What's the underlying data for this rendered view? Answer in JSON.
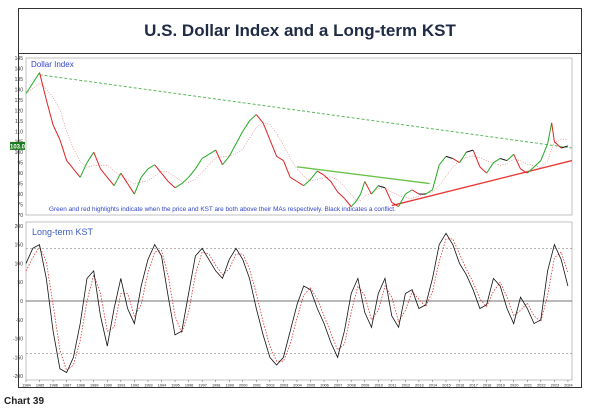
{
  "title": "U.S. Dollar Index and a Long-term KST",
  "caption": "Chart 39",
  "colors": {
    "up": "#22aa22",
    "down": "#dd2222",
    "conflict": "#111111",
    "kst": "#111111",
    "kst_ma": "#dd3333",
    "top_trendline": "#5cb85c",
    "bottom_trendline": "#e83a3a",
    "channel": "#6cc24a",
    "label_blue": "#3344cc",
    "badge": "#1b7a1b"
  },
  "chart_data": [
    {
      "type": "line",
      "series_label": "Dollar Index",
      "ylim": [
        70,
        145
      ],
      "yticks": [
        "145",
        "140",
        "135",
        "130",
        "125",
        "120",
        "115",
        "110",
        "105",
        "100",
        "95",
        "90",
        "85",
        "80",
        "75",
        "70"
      ],
      "ytick_values": [
        145,
        140,
        135,
        130,
        125,
        120,
        115,
        110,
        105,
        100,
        95,
        90,
        85,
        80,
        75,
        70
      ],
      "current_badge": "103.0",
      "current_value": 103,
      "annotation": "Green and red highlights indicate when the price and KST are both above their MAs respectively. Black indicates a conflict.",
      "series": [
        {
          "name": "Dollar Index",
          "x": [
            1984,
            1985,
            1985.5,
            1986,
            1986.5,
            1987,
            1987.5,
            1988,
            1988.5,
            1989,
            1989.5,
            1990,
            1990.5,
            1991,
            1991.5,
            1992,
            1992.5,
            1993,
            1993.5,
            1994,
            1994.5,
            1995,
            1995.5,
            1996,
            1996.5,
            1997,
            1997.5,
            1998,
            1998.5,
            1999,
            1999.5,
            2000,
            2000.5,
            2001,
            2001.5,
            2002,
            2002.5,
            2003,
            2003.5,
            2004,
            2004.5,
            2005,
            2005.5,
            2006,
            2006.5,
            2007,
            2007.5,
            2008,
            2008.3,
            2008.7,
            2009,
            2009.5,
            2010,
            2010.5,
            2011,
            2011.5,
            2012,
            2012.5,
            2013,
            2013.5,
            2014,
            2014.5,
            2015,
            2015.5,
            2016,
            2016.5,
            2017,
            2017.5,
            2018,
            2018.5,
            2019,
            2019.5,
            2020,
            2020.5,
            2021,
            2021.5,
            2022,
            2022.5,
            2022.8,
            2023,
            2023.5,
            2024
          ],
          "y": [
            128,
            138,
            125,
            113,
            106,
            96,
            92,
            88,
            95,
            100,
            92,
            88,
            84,
            90,
            85,
            80,
            88,
            92,
            94,
            90,
            86,
            83,
            85,
            88,
            92,
            97,
            99,
            101,
            94,
            98,
            104,
            110,
            115,
            118,
            114,
            106,
            98,
            96,
            88,
            86,
            84,
            87,
            91,
            89,
            86,
            81,
            78,
            74,
            76,
            80,
            86,
            80,
            84,
            83,
            76,
            74,
            80,
            82,
            80,
            80,
            82,
            94,
            98,
            97,
            95,
            100,
            101,
            93,
            90,
            95,
            97,
            96,
            99,
            92,
            90,
            93,
            96,
            104,
            114,
            105,
            102,
            103
          ]
        }
      ]
    },
    {
      "type": "line",
      "series_label": "Long-term KST",
      "ylim": [
        -210,
        210
      ],
      "yticks": [
        "200",
        "150",
        "100",
        "50",
        "0",
        "-50",
        "-100",
        "-150",
        "-200"
      ],
      "ytick_values": [
        200,
        150,
        100,
        50,
        0,
        -50,
        -100,
        -150,
        -200
      ],
      "reference_lines": [
        140,
        0,
        -140
      ],
      "xticks": [
        "1984",
        "1985",
        "1986",
        "1987",
        "1988",
        "1989",
        "1990",
        "1991",
        "1992",
        "1993",
        "1994",
        "1995",
        "1996",
        "1997",
        "1998",
        "1999",
        "2000",
        "2001",
        "2002",
        "2003",
        "2004",
        "2005",
        "2006",
        "2007",
        "2008",
        "2009",
        "2010",
        "2011",
        "2012",
        "2013",
        "2014",
        "2015",
        "2016",
        "2017",
        "2018",
        "2019",
        "2020",
        "2021",
        "2022",
        "2023",
        "2024"
      ],
      "series": [
        {
          "name": "KST",
          "x": [
            1984,
            1984.5,
            1985,
            1985.5,
            1986,
            1986.5,
            1987,
            1987.5,
            1988,
            1988.5,
            1989,
            1989.5,
            1990,
            1990.5,
            1991,
            1991.5,
            1992,
            1992.5,
            1993,
            1993.5,
            1994,
            1994.5,
            1995,
            1995.5,
            1996,
            1996.5,
            1997,
            1997.5,
            1998,
            1998.5,
            1999,
            1999.5,
            2000,
            2000.5,
            2001,
            2001.5,
            2002,
            2002.5,
            2003,
            2003.5,
            2004,
            2004.5,
            2005,
            2005.5,
            2006,
            2006.5,
            2007,
            2007.5,
            2008,
            2008.5,
            2009,
            2009.5,
            2010,
            2010.5,
            2011,
            2011.5,
            2012,
            2012.5,
            2013,
            2013.5,
            2014,
            2014.5,
            2015,
            2015.5,
            2016,
            2016.5,
            2017,
            2017.5,
            2018,
            2018.5,
            2019,
            2019.5,
            2020,
            2020.5,
            2021,
            2021.5,
            2022,
            2022.5,
            2023,
            2023.5,
            2024
          ],
          "y": [
            100,
            140,
            150,
            60,
            -80,
            -180,
            -190,
            -150,
            -60,
            60,
            80,
            -40,
            -120,
            -20,
            60,
            -20,
            -60,
            40,
            110,
            150,
            120,
            10,
            -90,
            -80,
            20,
            120,
            140,
            110,
            80,
            60,
            110,
            140,
            110,
            60,
            -20,
            -90,
            -150,
            -170,
            -150,
            -80,
            -10,
            40,
            30,
            -20,
            -60,
            -110,
            -150,
            -80,
            20,
            60,
            -30,
            -70,
            20,
            60,
            -40,
            -70,
            20,
            30,
            -20,
            -10,
            60,
            150,
            180,
            150,
            100,
            70,
            30,
            -20,
            -10,
            60,
            40,
            -20,
            -60,
            10,
            -20,
            -60,
            -50,
            80,
            150,
            110,
            40
          ]
        },
        {
          "name": "KST MA",
          "x": [
            1984,
            1984.5,
            1985,
            1985.5,
            1986,
            1986.5,
            1987,
            1987.5,
            1988,
            1988.5,
            1989,
            1989.5,
            1990,
            1990.5,
            1991,
            1991.5,
            1992,
            1992.5,
            1993,
            1993.5,
            1994,
            1994.5,
            1995,
            1995.5,
            1996,
            1996.5,
            1997,
            1997.5,
            1998,
            1998.5,
            1999,
            1999.5,
            2000,
            2000.5,
            2001,
            2001.5,
            2002,
            2002.5,
            2003,
            2003.5,
            2004,
            2004.5,
            2005,
            2005.5,
            2006,
            2006.5,
            2007,
            2007.5,
            2008,
            2008.5,
            2009,
            2009.5,
            2010,
            2010.5,
            2011,
            2011.5,
            2012,
            2012.5,
            2013,
            2013.5,
            2014,
            2014.5,
            2015,
            2015.5,
            2016,
            2016.5,
            2017,
            2017.5,
            2018,
            2018.5,
            2019,
            2019.5,
            2020,
            2020.5,
            2021,
            2021.5,
            2022,
            2022.5,
            2023,
            2023.5,
            2024
          ],
          "y": [
            80,
            115,
            145,
            105,
            -10,
            -130,
            -185,
            -170,
            -105,
            0,
            70,
            20,
            -80,
            -70,
            20,
            20,
            -40,
            -10,
            75,
            130,
            135,
            65,
            -40,
            -85,
            -30,
            70,
            130,
            125,
            95,
            70,
            85,
            125,
            125,
            85,
            20,
            -55,
            -120,
            -160,
            -160,
            -115,
            -45,
            15,
            35,
            5,
            -40,
            -85,
            -130,
            -115,
            -30,
            40,
            15,
            -50,
            -25,
            40,
            10,
            -55,
            -25,
            25,
            5,
            -15,
            25,
            105,
            165,
            165,
            125,
            85,
            50,
            5,
            -15,
            25,
            50,
            10,
            -40,
            -25,
            -5,
            -40,
            -55,
            15,
            115,
            130,
            75
          ]
        }
      ]
    }
  ]
}
